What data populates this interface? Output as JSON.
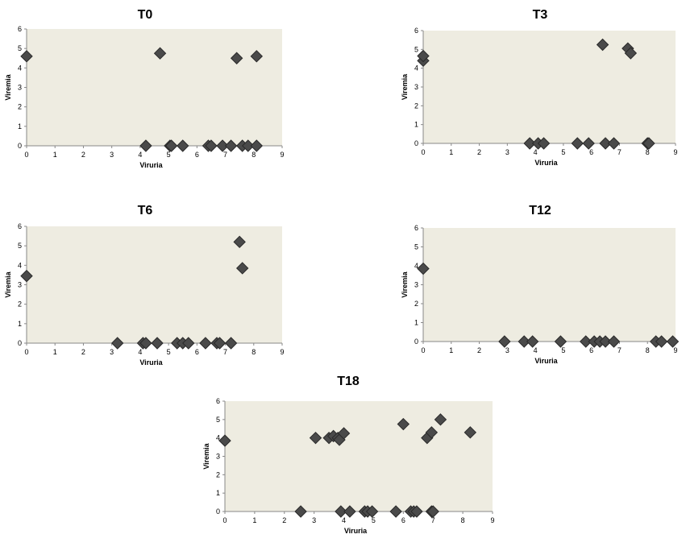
{
  "chart_data": [
    {
      "type": "scatter",
      "title": "T0",
      "xlabel": "Viruria",
      "ylabel": "Viremia",
      "xlim": [
        0,
        9
      ],
      "ylim": [
        0,
        6
      ],
      "xticks": [
        "0",
        "1",
        "2",
        "3",
        "4",
        "5",
        "6",
        "7",
        "8",
        "9"
      ],
      "yticks": [
        "0",
        "1",
        "2",
        "3",
        "4",
        "5",
        "6"
      ],
      "grid": false,
      "marker_color": "#4a4a4a",
      "plot_bg": "#eeece1",
      "points": [
        [
          0,
          4.6
        ],
        [
          4.7,
          4.75
        ],
        [
          7.4,
          4.5
        ],
        [
          8.1,
          4.6
        ],
        [
          4.2,
          0
        ],
        [
          5.05,
          0
        ],
        [
          5.1,
          0
        ],
        [
          5.5,
          0
        ],
        [
          6.4,
          0
        ],
        [
          6.5,
          0
        ],
        [
          6.9,
          0
        ],
        [
          7.2,
          0
        ],
        [
          7.6,
          0
        ],
        [
          7.8,
          0
        ],
        [
          8.1,
          0
        ]
      ]
    },
    {
      "type": "scatter",
      "title": "T3",
      "xlabel": "Viruria",
      "ylabel": "Viremia",
      "xlim": [
        0,
        9
      ],
      "ylim": [
        0,
        6
      ],
      "xticks": [
        "0",
        "1",
        "2",
        "3",
        "4",
        "5",
        "6",
        "7",
        "8",
        "9"
      ],
      "yticks": [
        "0",
        "1",
        "2",
        "3",
        "4",
        "5",
        "6"
      ],
      "grid": false,
      "marker_color": "#4a4a4a",
      "plot_bg": "#eeece1",
      "points": [
        [
          0,
          4.4
        ],
        [
          0,
          4.65
        ],
        [
          6.4,
          5.25
        ],
        [
          7.3,
          5.05
        ],
        [
          7.4,
          4.8
        ],
        [
          3.8,
          0
        ],
        [
          4.1,
          0
        ],
        [
          4.3,
          0
        ],
        [
          5.5,
          0
        ],
        [
          5.9,
          0
        ],
        [
          6.5,
          0
        ],
        [
          6.8,
          0
        ],
        [
          8.0,
          0
        ],
        [
          8.05,
          0
        ]
      ]
    },
    {
      "type": "scatter",
      "title": "T6",
      "xlabel": "Viruria",
      "ylabel": "Viremia",
      "xlim": [
        0,
        9
      ],
      "ylim": [
        0,
        6
      ],
      "xticks": [
        "0",
        "1",
        "2",
        "3",
        "4",
        "5",
        "6",
        "7",
        "8",
        "9"
      ],
      "yticks": [
        "0",
        "1",
        "2",
        "3",
        "4",
        "5",
        "6"
      ],
      "grid": false,
      "marker_color": "#4a4a4a",
      "plot_bg": "#eeece1",
      "points": [
        [
          0,
          3.45
        ],
        [
          7.5,
          5.2
        ],
        [
          7.6,
          3.85
        ],
        [
          3.2,
          0
        ],
        [
          4.1,
          0
        ],
        [
          4.2,
          0
        ],
        [
          4.6,
          0
        ],
        [
          5.3,
          0
        ],
        [
          5.5,
          0
        ],
        [
          5.7,
          0
        ],
        [
          6.3,
          0
        ],
        [
          6.7,
          0
        ],
        [
          6.8,
          0
        ],
        [
          7.2,
          0
        ]
      ]
    },
    {
      "type": "scatter",
      "title": "T12",
      "xlabel": "Viruria",
      "ylabel": "Viremia",
      "xlim": [
        0,
        9
      ],
      "ylim": [
        0,
        6
      ],
      "xticks": [
        "0",
        "1",
        "2",
        "3",
        "4",
        "5",
        "6",
        "7",
        "8",
        "9"
      ],
      "yticks": [
        "0",
        "1",
        "2",
        "3",
        "4",
        "5",
        "6"
      ],
      "grid": false,
      "marker_color": "#4a4a4a",
      "plot_bg": "#eeece1",
      "points": [
        [
          0,
          3.85
        ],
        [
          2.9,
          0
        ],
        [
          3.6,
          0
        ],
        [
          3.9,
          0
        ],
        [
          4.9,
          0
        ],
        [
          5.8,
          0
        ],
        [
          6.1,
          0
        ],
        [
          6.3,
          0
        ],
        [
          6.5,
          0
        ],
        [
          6.8,
          0
        ],
        [
          8.3,
          0
        ],
        [
          8.5,
          0
        ],
        [
          8.9,
          0
        ]
      ]
    },
    {
      "type": "scatter",
      "title": "T18",
      "xlabel": "Viruria",
      "ylabel": "Viremia",
      "xlim": [
        0,
        9
      ],
      "ylim": [
        0,
        6
      ],
      "xticks": [
        "0",
        "1",
        "2",
        "3",
        "4",
        "5",
        "6",
        "7",
        "8",
        "9"
      ],
      "yticks": [
        "0",
        "1",
        "2",
        "3",
        "4",
        "5",
        "6"
      ],
      "grid": false,
      "marker_color": "#4a4a4a",
      "plot_bg": "#eeece1",
      "points": [
        [
          0,
          3.85
        ],
        [
          3.05,
          4.0
        ],
        [
          3.5,
          4.0
        ],
        [
          3.65,
          4.1
        ],
        [
          3.8,
          4.0
        ],
        [
          3.85,
          3.9
        ],
        [
          4.0,
          4.25
        ],
        [
          6.0,
          4.75
        ],
        [
          6.8,
          4.0
        ],
        [
          6.95,
          4.3
        ],
        [
          7.25,
          5.0
        ],
        [
          8.25,
          4.3
        ],
        [
          2.55,
          0
        ],
        [
          3.9,
          0
        ],
        [
          4.2,
          0
        ],
        [
          4.7,
          0
        ],
        [
          4.8,
          0
        ],
        [
          4.95,
          0
        ],
        [
          5.75,
          0
        ],
        [
          6.25,
          0
        ],
        [
          6.35,
          0
        ],
        [
          6.45,
          0
        ],
        [
          6.95,
          0
        ],
        [
          7.0,
          0
        ]
      ]
    }
  ]
}
